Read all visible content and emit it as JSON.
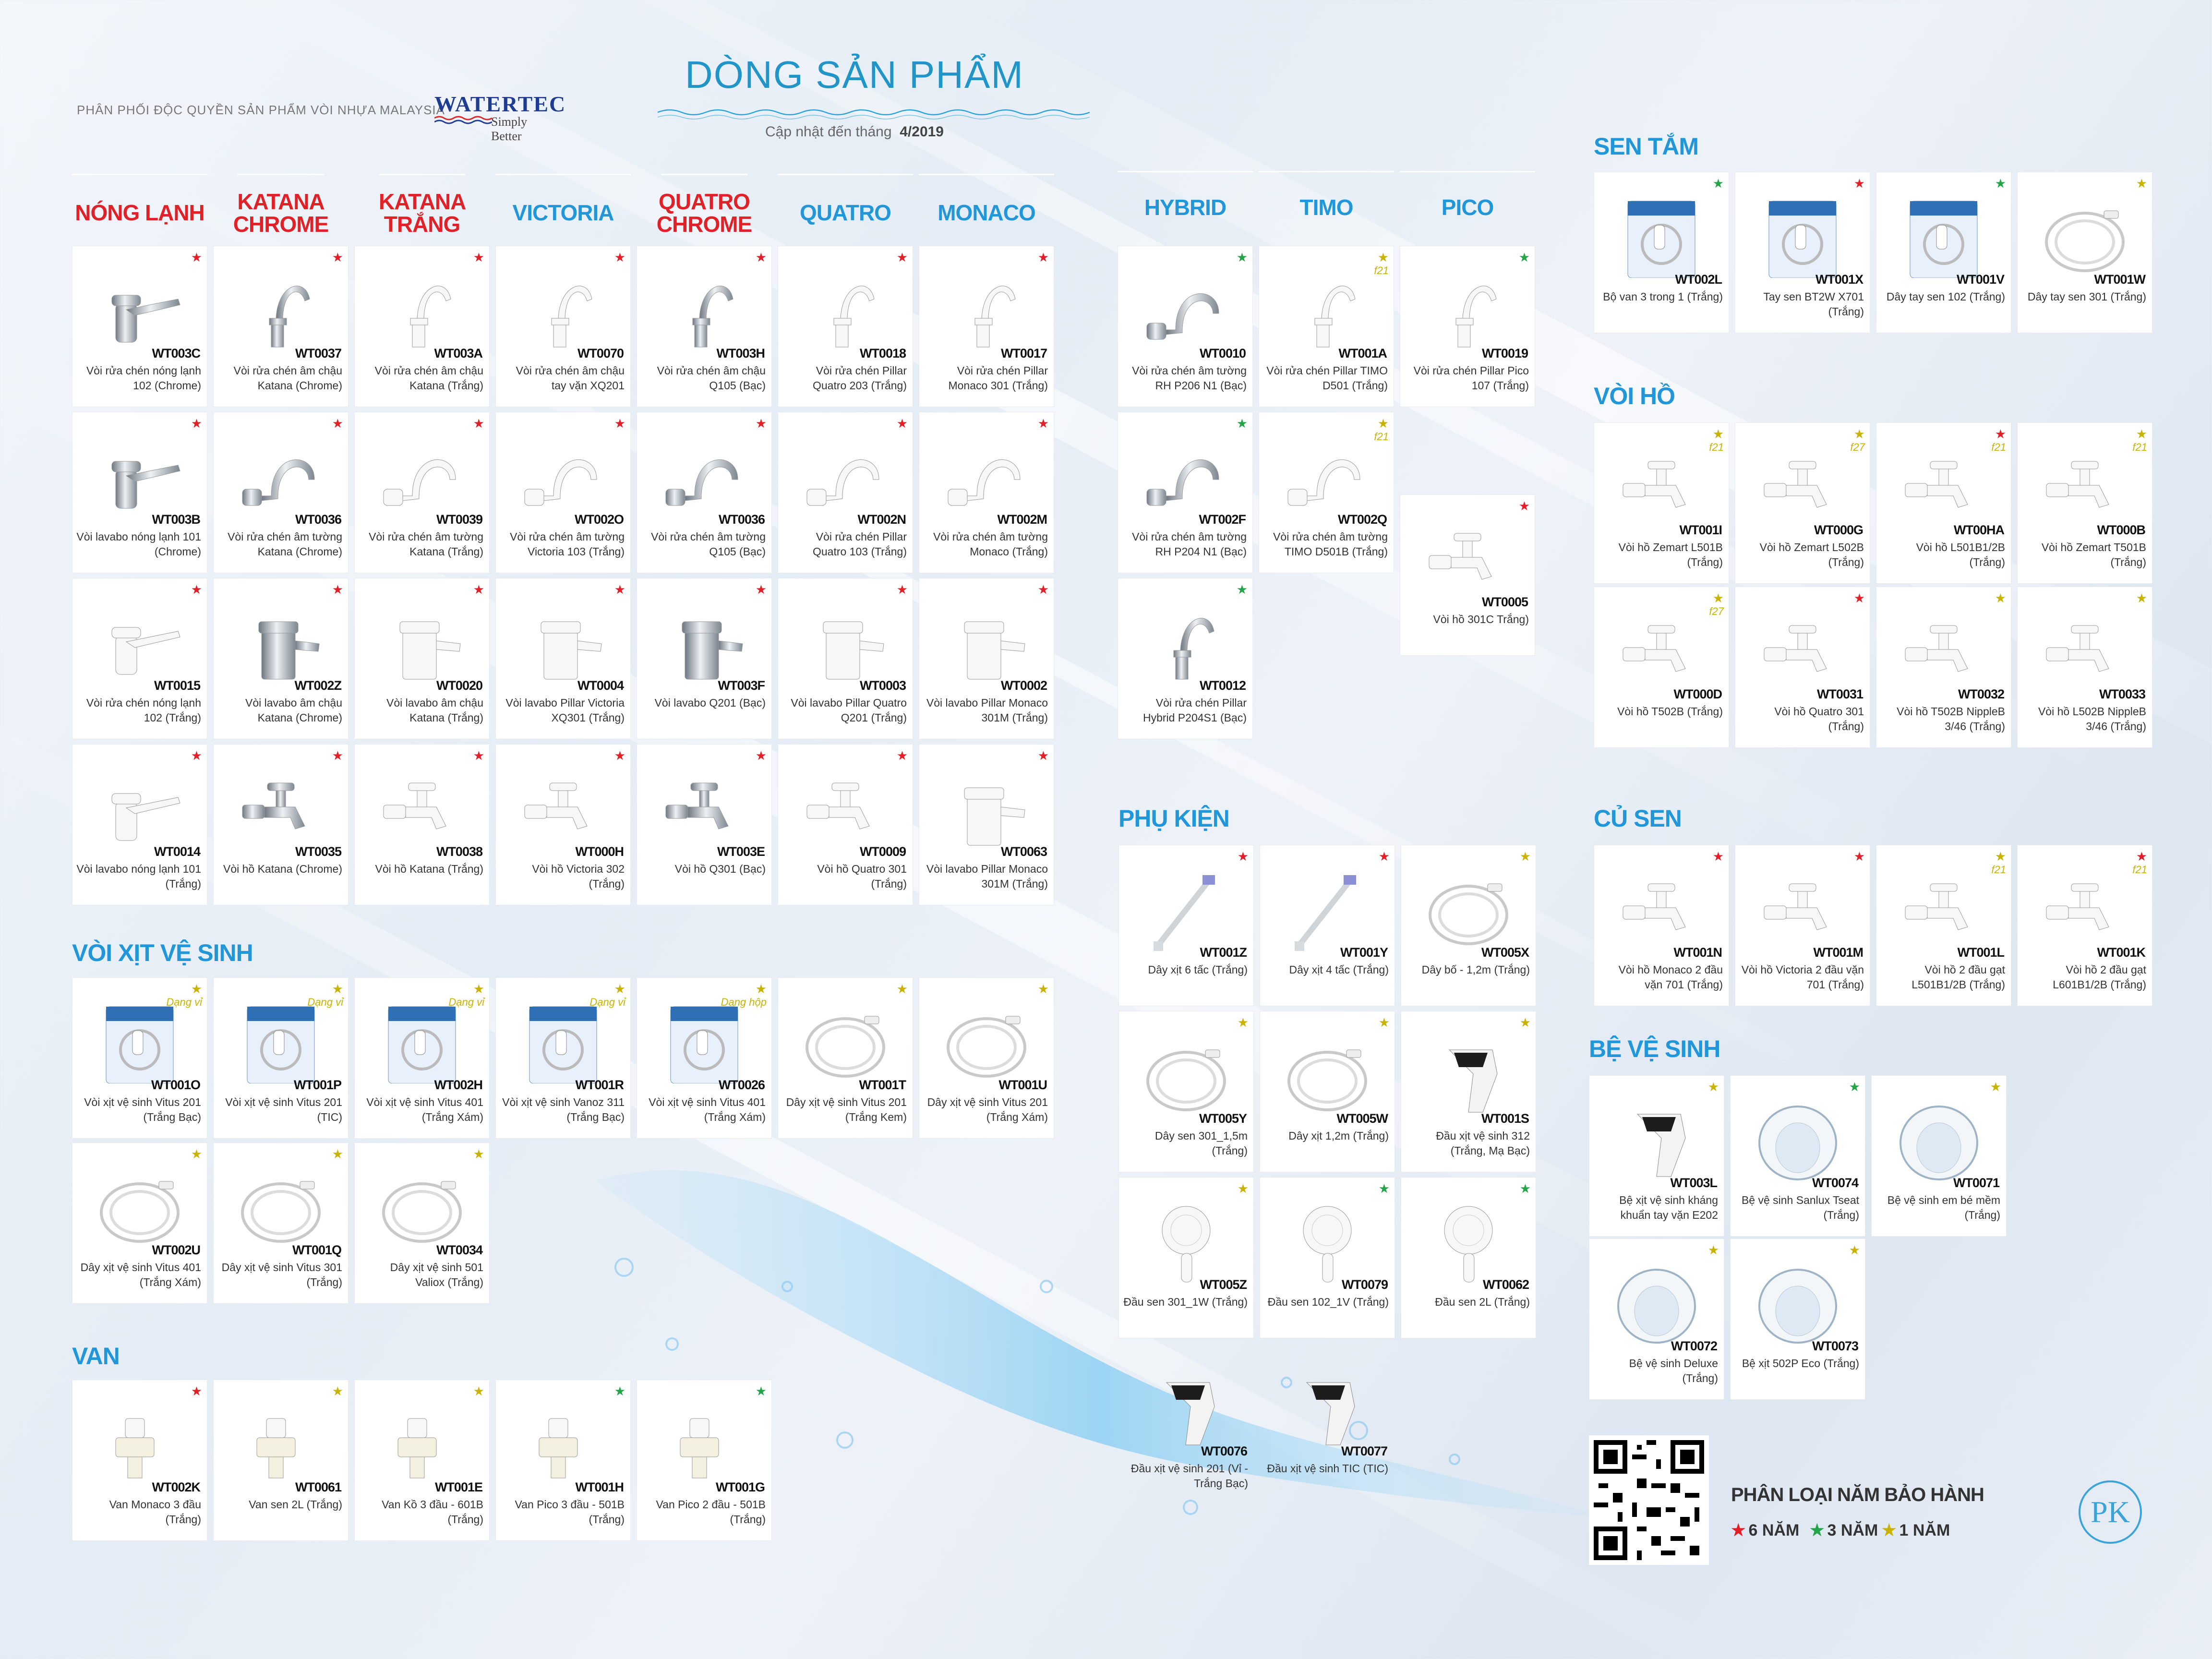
{
  "header": {
    "distributor": "PHÂN PHỐI ĐỘC QUYỀN SẢN PHẨM VÒI NHỰA MALAYSIA",
    "logo_name": "WATERTEC",
    "logo_tagline": "Simply Better",
    "title": "DÒNG SẢN PHẨM",
    "update_label": "Cập nhật đến tháng",
    "update_date": "4/2019"
  },
  "colors": {
    "red": "#e31e26",
    "green": "#22a447",
    "yellow": "#c9b200",
    "heading_blue": "#2196d8",
    "heading_red": "#e02128"
  },
  "columns": [
    {
      "label": "NÓNG LẠNH",
      "color": "red"
    },
    {
      "label": "KATANA CHROME",
      "color": "red"
    },
    {
      "label": "KATANA TRẮNG",
      "color": "red"
    },
    {
      "label": "VICTORIA",
      "color": "blue"
    },
    {
      "label": "QUATRO CHROME",
      "color": "red"
    },
    {
      "label": "QUATRO",
      "color": "blue"
    },
    {
      "label": "MONACO",
      "color": "blue"
    },
    {
      "label": "HYBRID",
      "color": "blue"
    },
    {
      "label": "TIMO",
      "color": "blue"
    },
    {
      "label": "PICO",
      "color": "blue"
    }
  ],
  "sections": {
    "sen_tam": "SEN TẮM",
    "voi_ho": "VÒI HỒ",
    "cu_sen": "CỦ SEN",
    "be_ve_sinh": "BỆ VỆ SINH",
    "voi_xit": "VÒI XỊT VỆ SINH",
    "van": "VAN",
    "phu_kien": "PHỤ KIỆN"
  },
  "products": [
    {
      "code": "WT003C",
      "desc": "Vòi rửa chén nóng lạnh 102 (Chrome)",
      "star": "red",
      "icon": "single-lever-chrome-faucet"
    },
    {
      "code": "WT0037",
      "desc": "Vòi rửa chén âm chậu Katana (Chrome)",
      "star": "red",
      "icon": "swan-neck-chrome-faucet"
    },
    {
      "code": "WT003A",
      "desc": "Vòi rửa chén âm chậu Katana (Trắng)",
      "star": "red",
      "icon": "swan-neck-white-faucet"
    },
    {
      "code": "WT0070",
      "desc": "Vòi rửa chén âm chậu tay vặn XQ201",
      "star": "red",
      "icon": "swan-neck-white-faucet"
    },
    {
      "code": "WT003H",
      "desc": "Vòi rửa chén âm chậu Q105 (Bạc)",
      "star": "red",
      "icon": "swan-neck-chrome-faucet"
    },
    {
      "code": "WT0018",
      "desc": "Vòi rửa chén Pillar Quatro 203 (Trắng)",
      "star": "red",
      "icon": "swan-neck-white-faucet"
    },
    {
      "code": "WT0017",
      "desc": "Vòi rửa chén Pillar Monaco 301 (Trắng)",
      "star": "red",
      "icon": "swan-neck-white-faucet"
    },
    {
      "code": "WT003B",
      "desc": "Vòi lavabo nóng lạnh 101 (Chrome)",
      "star": "red",
      "icon": "single-lever-chrome-faucet"
    },
    {
      "code": "WT0036",
      "desc": "Vòi rửa chén âm tường Katana (Chrome)",
      "star": "red",
      "icon": "wall-chrome-faucet"
    },
    {
      "code": "WT0039",
      "desc": "Vòi rửa chén âm tường Katana (Trắng)",
      "star": "red",
      "icon": "wall-white-faucet"
    },
    {
      "code": "WT002O",
      "desc": "Vòi rửa chén âm tường Victoria 103 (Trắng)",
      "star": "red",
      "icon": "wall-white-faucet"
    },
    {
      "code": "WT0036",
      "desc": "Vòi rửa chén âm tường Q105 (Bạc)",
      "star": "red",
      "icon": "wall-chrome-faucet"
    },
    {
      "code": "WT002N",
      "desc": "Vòi rửa chén Pillar Quatro 103 (Trắng)",
      "star": "red",
      "icon": "wall-white-faucet"
    },
    {
      "code": "WT002M",
      "desc": "Vòi rửa chén âm tường Monaco (Trắng)",
      "star": "red",
      "icon": "wall-white-faucet"
    },
    {
      "code": "WT0015",
      "desc": "Vòi rửa chén nóng lạnh 102 (Trắng)",
      "star": "red",
      "icon": "single-lever-white-faucet"
    },
    {
      "code": "WT002Z",
      "desc": "Vòi lavabo âm chậu Katana (Chrome)",
      "star": "red",
      "icon": "basin-chrome-faucet"
    },
    {
      "code": "WT0020",
      "desc": "Vòi lavabo âm chậu Katana (Trắng)",
      "star": "red",
      "icon": "basin-white-faucet"
    },
    {
      "code": "WT0004",
      "desc": "Vòi lavabo Pillar Victoria XQ301 (Trắng)",
      "star": "red",
      "icon": "basin-white-faucet"
    },
    {
      "code": "WT003F",
      "desc": "Vòi lavabo Q201 (Bạc)",
      "star": "red",
      "icon": "basin-chrome-faucet"
    },
    {
      "code": "WT0003",
      "desc": "Vòi lavabo Pillar Quatro Q201 (Trắng)",
      "star": "red",
      "icon": "basin-white-faucet"
    },
    {
      "code": "WT0002",
      "desc": "Vòi lavabo Pillar Monaco 301M (Trắng)",
      "star": "red",
      "icon": "basin-white-faucet"
    },
    {
      "code": "WT0014",
      "desc": "Vòi lavabo nóng lạnh 101 (Trắng)",
      "star": "red",
      "icon": "single-lever-white-faucet"
    },
    {
      "code": "WT0035",
      "desc": "Vòi hồ Katana (Chrome)",
      "star": "red",
      "icon": "garden-chrome-tap"
    },
    {
      "code": "WT0038",
      "desc": "Vòi hồ Katana (Trắng)",
      "star": "red",
      "icon": "garden-white-tap"
    },
    {
      "code": "WT000H",
      "desc": "Vòi hồ Victoria 302 (Trắng)",
      "star": "red",
      "icon": "garden-white-tap"
    },
    {
      "code": "WT003E",
      "desc": "Vòi hồ Q301 (Bạc)",
      "star": "red",
      "icon": "garden-chrome-tap"
    },
    {
      "code": "WT0009",
      "desc": "Vòi hồ Quatro 301 (Trắng)",
      "star": "red",
      "icon": "garden-white-tap"
    },
    {
      "code": "WT0063",
      "desc": "Vòi lavabo Pillar Monaco 301M (Trắng)",
      "star": "red",
      "icon": "basin-white-faucet"
    },
    {
      "code": "WT0010",
      "desc": "Vòi rửa chén âm tường RH P206 N1 (Bạc)",
      "star": "green",
      "icon": "wall-chrome-faucet"
    },
    {
      "code": "WT001A",
      "desc": "Vòi rửa chén Pillar TIMO D501 (Trắng)",
      "star": "yellow",
      "note": "f21",
      "icon": "swan-neck-white-faucet"
    },
    {
      "code": "WT0019",
      "desc": "Vòi rửa chén Pillar Pico 107 (Trắng)",
      "star": "green",
      "icon": "swan-neck-white-faucet"
    },
    {
      "code": "WT002F",
      "desc": "Vòi rửa chén âm tường RH P204 N1 (Bạc)",
      "star": "green",
      "icon": "wall-chrome-faucet"
    },
    {
      "code": "WT002Q",
      "desc": "Vòi rửa chén âm tường TIMO D501B (Trắng)",
      "star": "yellow",
      "note": "f21",
      "icon": "wall-white-faucet"
    },
    {
      "code": "WT0005",
      "desc": "Vòi hồ 301C Trắng)",
      "star": "red",
      "icon": "garden-white-tap"
    },
    {
      "code": "WT0012",
      "desc": "Vòi rửa chén Pillar Hybrid P204S1 (Bạc)",
      "star": "green",
      "icon": "swan-neck-chrome-faucet"
    },
    {
      "code": "WT002L",
      "desc": "Bộ van 3 trong 1 (Trắng)",
      "star": "green",
      "icon": "shower-set-box"
    },
    {
      "code": "WT001X",
      "desc": "Tay sen BT2W X701 (Trắng)",
      "star": "red",
      "icon": "shower-set-box"
    },
    {
      "code": "WT001V",
      "desc": "Dây tay sen 102 (Trắng)",
      "star": "green",
      "icon": "shower-set-box"
    },
    {
      "code": "WT001W",
      "desc": "Dây tay sen 301 (Trắng)",
      "star": "yellow",
      "icon": "hand-shower-hose"
    },
    {
      "code": "WT001I",
      "desc": "Vòi hồ Zemart L501B (Trắng)",
      "star": "yellow",
      "note": "f21",
      "icon": "garden-white-tap"
    },
    {
      "code": "WT000G",
      "desc": "Vòi hồ Zemart L502B (Trắng)",
      "star": "yellow",
      "note": "f27",
      "icon": "garden-white-tap"
    },
    {
      "code": "WT00HA",
      "desc": "Vòi hồ L501B1/2B (Trắng)",
      "star": "red",
      "note": "f21",
      "icon": "garden-white-tap"
    },
    {
      "code": "WT000B",
      "desc": "Vòi hồ Zemart T501B (Trắng)",
      "star": "yellow",
      "note": "f21",
      "icon": "garden-white-tap"
    },
    {
      "code": "WT000D",
      "desc": "Vòi hồ T502B (Trắng)",
      "star": "yellow",
      "note": "f27",
      "icon": "garden-white-tap"
    },
    {
      "code": "WT0031",
      "desc": "Vòi hồ Quatro 301 (Trắng)",
      "star": "red",
      "icon": "garden-white-tap"
    },
    {
      "code": "WT0032",
      "desc": "Vòi hồ T502B NippleB 3/46 (Trắng)",
      "star": "yellow",
      "icon": "garden-white-tap"
    },
    {
      "code": "WT0033",
      "desc": "Vòi hồ L502B NippleB 3/46 (Trắng)",
      "star": "yellow",
      "icon": "garden-white-tap"
    },
    {
      "code": "WT001N",
      "desc": "Vòi hồ Monaco 2 đầu vặn 701 (Trắng)",
      "star": "red",
      "icon": "garden-white-tap"
    },
    {
      "code": "WT001M",
      "desc": "Vòi hồ Victoria 2 đầu vặn 701 (Trắng)",
      "star": "red",
      "icon": "garden-white-tap"
    },
    {
      "code": "WT001L",
      "desc": "Vòi hồ 2 đầu gạt L501B1/2B (Trắng)",
      "star": "yellow",
      "note": "f21",
      "icon": "garden-white-tap"
    },
    {
      "code": "WT001K",
      "desc": "Vòi hồ 2 đầu gạt L601B1/2B (Trắng)",
      "star": "red",
      "note": "f21",
      "icon": "garden-white-tap"
    },
    {
      "code": "WT003L",
      "desc": "Bệ xịt vệ sinh kháng khuẩn tay vặn E202",
      "star": "yellow",
      "icon": "bidet-attachment"
    },
    {
      "code": "WT0074",
      "desc": "Bệ vệ sinh Sanlux Tseat (Trắng)",
      "star": "green",
      "icon": "toilet-seat"
    },
    {
      "code": "WT0071",
      "desc": "Bệ vệ sinh em bé mềm (Trắng)",
      "star": "yellow",
      "icon": "toilet-seat"
    },
    {
      "code": "WT0072",
      "desc": "Bệ vệ sinh Deluxe (Trắng)",
      "star": "yellow",
      "icon": "toilet-seat"
    },
    {
      "code": "WT0073",
      "desc": "Bệ xịt 502P Eco (Trắng)",
      "star": "yellow",
      "icon": "toilet-seat"
    },
    {
      "code": "WT001O",
      "desc": "Vòi xịt vệ sinh Vitus 201 (Trắng Bạc)",
      "star": "yellow",
      "note": "Dạng vỉ",
      "icon": "bidet-spray-pack"
    },
    {
      "code": "WT001P",
      "desc": "Vòi xịt vệ sinh Vitus 201 (TIC)",
      "star": "yellow",
      "note": "Dạng vỉ",
      "icon": "bidet-spray-pack"
    },
    {
      "code": "WT002H",
      "desc": "Vòi xịt vệ sinh Vitus 401 (Trắng Xám)",
      "star": "yellow",
      "note": "Dạng vỉ",
      "icon": "bidet-spray-pack"
    },
    {
      "code": "WT001R",
      "desc": "Vòi xịt vệ sinh Vanoz 311 (Trắng Bạc)",
      "star": "yellow",
      "note": "Dạng vỉ",
      "icon": "bidet-spray-pack"
    },
    {
      "code": "WT0026",
      "desc": "Vòi xịt vệ sinh Vitus 401 (Trắng Xám)",
      "star": "yellow",
      "note": "Dạng hộp",
      "icon": "bidet-spray-box"
    },
    {
      "code": "WT001T",
      "desc": "Dây xịt vệ sinh Vitus 201 (Trắng Kem)",
      "star": "yellow",
      "icon": "bidet-hose"
    },
    {
      "code": "WT001U",
      "desc": "Dây xịt vệ sinh Vitus 201 (Trắng Xám)",
      "star": "yellow",
      "icon": "bidet-hose"
    },
    {
      "code": "WT002U",
      "desc": "Dây xịt vệ sinh Vitus 401 (Trắng Xám)",
      "star": "yellow",
      "icon": "bidet-hose"
    },
    {
      "code": "WT001Q",
      "desc": "Dây xịt vệ sinh Vitus 301 (Trắng)",
      "star": "yellow",
      "icon": "bidet-hose"
    },
    {
      "code": "WT0034",
      "desc": "Dây xịt vệ sinh 501 Valiox (Trắng)",
      "star": "yellow",
      "icon": "bidet-hose"
    },
    {
      "code": "WT002K",
      "desc": "Van Monaco 3 đầu (Trắng)",
      "star": "red",
      "icon": "angle-valve"
    },
    {
      "code": "WT0061",
      "desc": "Van sen 2L (Trắng)",
      "star": "yellow",
      "icon": "angle-valve"
    },
    {
      "code": "WT001E",
      "desc": "Van Kồ 3 đầu - 601B (Trắng)",
      "star": "yellow",
      "icon": "angle-valve"
    },
    {
      "code": "WT001H",
      "desc": "Van Pico 3 đầu - 501B (Trắng)",
      "star": "green",
      "icon": "angle-valve"
    },
    {
      "code": "WT001G",
      "desc": "Van Pico 2 đầu - 501B (Trắng)",
      "star": "green",
      "icon": "angle-valve"
    },
    {
      "code": "WT001Z",
      "desc": "Dây xịt 6 tấc (Trắng)",
      "star": "red",
      "icon": "straight-hose"
    },
    {
      "code": "WT001Y",
      "desc": "Dây xịt 4 tấc (Trắng)",
      "star": "red",
      "icon": "straight-hose"
    },
    {
      "code": "WT005X",
      "desc": "Dây bố - 1,2m (Trắng)",
      "star": "yellow",
      "icon": "coiled-hose"
    },
    {
      "code": "WT005Y",
      "desc": "Dây sen 301_1,5m (Trắng)",
      "star": "yellow",
      "icon": "coiled-hose"
    },
    {
      "code": "WT005W",
      "desc": "Dây xịt 1,2m (Trắng)",
      "star": "yellow",
      "icon": "coiled-hose"
    },
    {
      "code": "WT001S",
      "desc": "Đầu xịt vệ sinh 312 (Trắng, Mạ Bạc)",
      "star": "yellow",
      "icon": "bidet-head"
    },
    {
      "code": "WT005Z",
      "desc": "Đầu sen 301_1W (Trắng)",
      "star": "yellow",
      "icon": "shower-head"
    },
    {
      "code": "WT0079",
      "desc": "Đầu sen 102_1V (Trắng)",
      "star": "green",
      "icon": "shower-head"
    },
    {
      "code": "WT0062",
      "desc": "Đầu sen 2L (Trắng)",
      "star": "green",
      "icon": "shower-head"
    },
    {
      "code": "WT0076",
      "desc": "Đầu xịt vệ sinh 201 (Vỉ - Trắng Bạc)",
      "icon": "bidet-head"
    },
    {
      "code": "WT0077",
      "desc": "Đầu xịt vệ sinh TIC (TIC)",
      "icon": "bidet-head"
    }
  ],
  "legend": {
    "title": "PHÂN LOẠI NĂM BẢO HÀNH",
    "items": [
      {
        "label": "6 NĂM",
        "color": "red"
      },
      {
        "label": "3 NĂM",
        "color": "green"
      },
      {
        "label": "1 NĂM",
        "color": "yellow"
      }
    ]
  },
  "brand_mark": "PK"
}
